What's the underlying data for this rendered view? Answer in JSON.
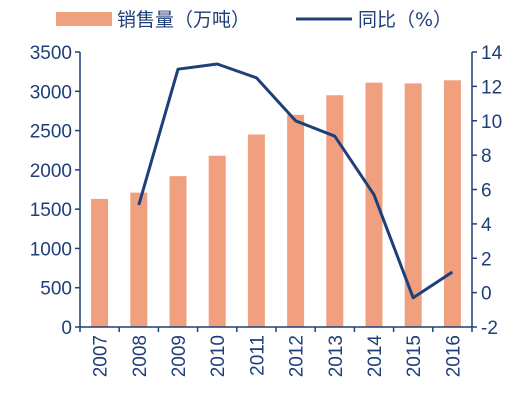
{
  "chart_data": {
    "type": "bar",
    "categories": [
      "2007",
      "2008",
      "2009",
      "2010",
      "2011",
      "2012",
      "2013",
      "2014",
      "2015",
      "2016"
    ],
    "series": [
      {
        "name": "销售量（万吨）",
        "type": "bar",
        "axis": "left",
        "color": "#f0a07e",
        "values": [
          1630,
          1710,
          1920,
          2180,
          2450,
          2700,
          2950,
          3110,
          3100,
          3140
        ]
      },
      {
        "name": "同比（%）",
        "type": "line",
        "axis": "right",
        "color": "#1f3f7a",
        "values": [
          null,
          5.1,
          13.0,
          13.3,
          12.5,
          10.0,
          9.1,
          5.7,
          -0.3,
          1.2
        ]
      }
    ],
    "y_left": {
      "min": 0,
      "max": 3500,
      "ticks": [
        0,
        500,
        1000,
        1500,
        2000,
        2500,
        3000,
        3500
      ]
    },
    "y_right": {
      "min": -2,
      "max": 14,
      "ticks": [
        -2,
        0,
        2,
        4,
        6,
        8,
        10,
        12,
        14
      ]
    },
    "legend_position": "top",
    "grid": false
  }
}
